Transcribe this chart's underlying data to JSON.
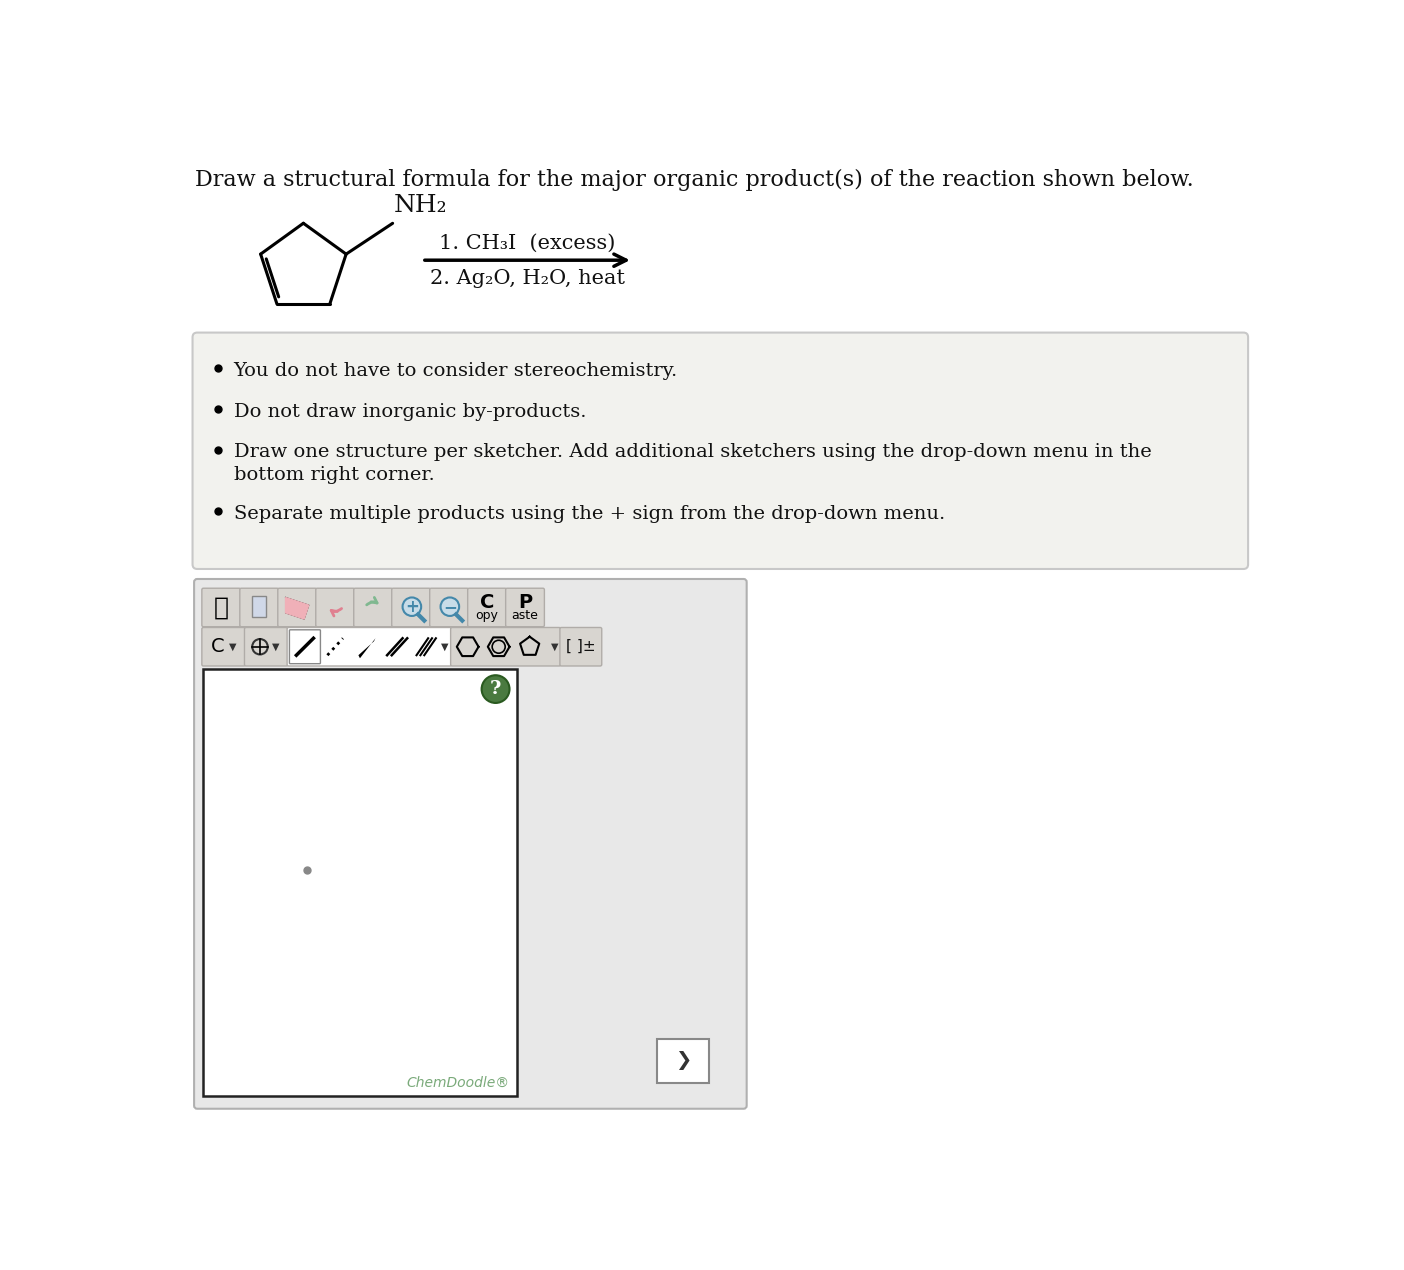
{
  "title": "Draw a structural formula for the major organic product(s) of the reaction shown below.",
  "title_fontsize": 16,
  "reaction_label1": "1. CH₃I  (excess)",
  "reaction_label2": "2. Ag₂O, H₂O, heat",
  "nh2_label": "NH₂",
  "background_color": "#ffffff",
  "bullet_points": [
    "You do not have to consider stereochemistry.",
    "Do not draw inorganic by-products.",
    "Draw one structure per sketcher. Add additional sketchers using the drop-down menu in the\nbottom right corner.",
    "Separate multiple products using the + sign from the drop-down menu."
  ],
  "chemdoodle_text": "ChemDoodle®",
  "question_mark": "?",
  "box_bg": "#f2f2ee",
  "panel_bg": "#e8e8e8",
  "draw_area_bg": "#ffffff"
}
